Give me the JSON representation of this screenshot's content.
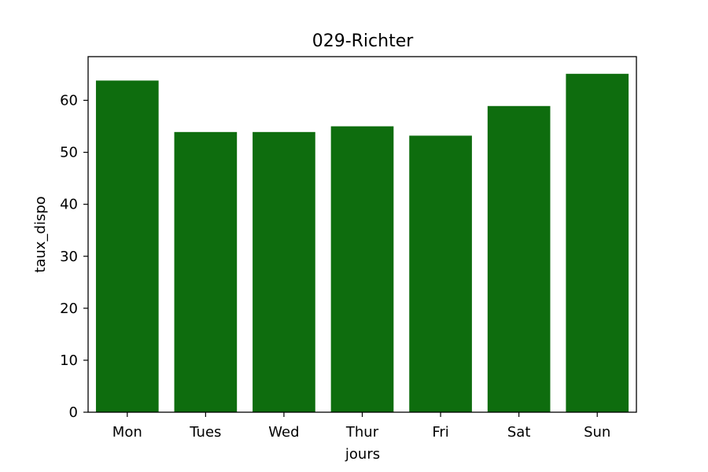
{
  "chart_data": {
    "type": "bar",
    "title": "029-Richter",
    "xlabel": "jours",
    "ylabel": "taux_dispo",
    "categories": [
      "Mon",
      "Tues",
      "Wed",
      "Thur",
      "Fri",
      "Sat",
      "Sun"
    ],
    "values": [
      63.8,
      53.9,
      53.9,
      55.0,
      53.2,
      58.9,
      65.1
    ],
    "ylim": [
      0,
      68.4
    ],
    "yticks": [
      "0",
      "10",
      "20",
      "30",
      "40",
      "50",
      "60"
    ],
    "grid": false,
    "bar_color": "#0e6d0e",
    "background": "#ffffff"
  }
}
